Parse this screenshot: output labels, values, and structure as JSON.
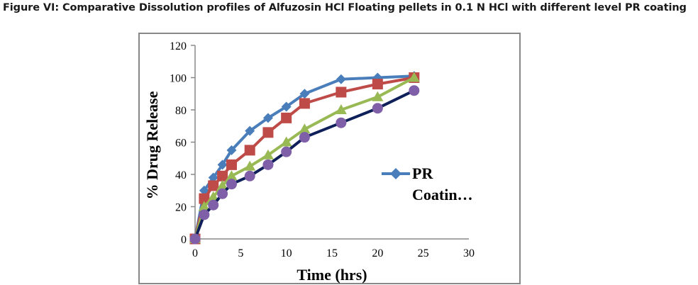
{
  "figure_title": "Figure VI: Comparative Dissolution profiles of Alfuzosin HCl Floating pellets in 0.1 N HCl with different level PR coating",
  "chart_data": {
    "type": "line",
    "xlabel": "Time (hrs)",
    "ylabel": "% Drug Release",
    "xlim": [
      0,
      30
    ],
    "ylim": [
      0,
      120
    ],
    "xticks": [
      "0",
      "5",
      "10",
      "15",
      "20",
      "25",
      "30"
    ],
    "yticks": [
      "0",
      "20",
      "40",
      "60",
      "80",
      "100",
      "120"
    ],
    "grid": false,
    "legend": {
      "placement": "right",
      "line1": "PR",
      "line2": "Coatin…"
    },
    "x": [
      0,
      1,
      2,
      3,
      4,
      6,
      8,
      10,
      12,
      16,
      20,
      24
    ],
    "series": [
      {
        "marker": "diamond",
        "color": "#4a7ebb",
        "line_color": "#4a7ebb",
        "values": [
          0,
          30,
          38,
          46,
          55,
          67,
          75,
          82,
          90,
          99,
          100,
          101
        ]
      },
      {
        "marker": "square",
        "color": "#be4b48",
        "line_color": "#be4b48",
        "values": [
          0,
          25,
          33,
          39,
          46,
          55,
          66,
          75,
          84,
          91,
          96,
          100
        ]
      },
      {
        "marker": "triangle",
        "color": "#98b954",
        "line_color": "#98b954",
        "values": [
          0,
          20,
          26,
          33,
          39,
          45,
          52,
          60,
          68,
          80,
          88,
          100
        ]
      },
      {
        "marker": "circle",
        "color": "#7f60a8",
        "line_color": "#0f1f5a",
        "values": [
          0,
          15,
          21,
          28,
          34,
          39,
          46,
          54,
          63,
          72,
          81,
          92
        ]
      }
    ]
  }
}
